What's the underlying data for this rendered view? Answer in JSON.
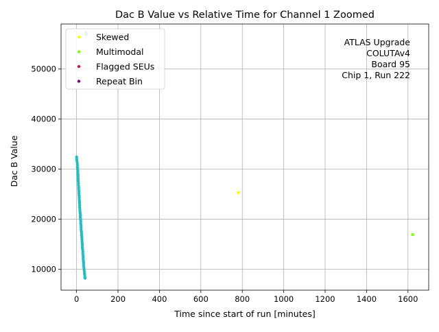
{
  "chart_data": {
    "type": "scatter",
    "title": "Dac B Value vs Relative Time for Channel 1 Zoomed",
    "xlabel": "Time since start of run [minutes]",
    "ylabel": "Dac B Value",
    "xlim": [
      -75,
      1700
    ],
    "ylim": [
      5800,
      59000
    ],
    "xticks": [
      0,
      200,
      400,
      600,
      800,
      1000,
      1200,
      1400,
      1600
    ],
    "xtick_labels": [
      "0",
      "200",
      "400",
      "600",
      "800",
      "1000",
      "1200",
      "1400",
      "1600"
    ],
    "yticks": [
      10000,
      20000,
      30000,
      40000,
      50000
    ],
    "ytick_labels": [
      "10000",
      "20000",
      "30000",
      "40000",
      "50000"
    ],
    "grid": true,
    "legend_location": "upper-left",
    "annotation": [
      "ATLAS Upgrade",
      "COLUTAv4",
      "Board 95",
      "Chip 1, Run 222"
    ],
    "series": [
      {
        "name": "",
        "color": "#1fbfbf",
        "points": [
          [
            0,
            32400
          ],
          [
            1,
            32000
          ],
          [
            2,
            31600
          ],
          [
            3,
            31200
          ],
          [
            4,
            30800
          ],
          [
            4,
            30400
          ],
          [
            5,
            30000
          ],
          [
            6,
            29600
          ],
          [
            6,
            29200
          ],
          [
            7,
            28800
          ],
          [
            7,
            28400
          ],
          [
            8,
            28000
          ],
          [
            8,
            27600
          ],
          [
            9,
            27200
          ],
          [
            9,
            26800
          ],
          [
            10,
            26400
          ],
          [
            10,
            26000
          ],
          [
            11,
            25600
          ],
          [
            11,
            25200
          ],
          [
            12,
            24800
          ],
          [
            13,
            24400
          ],
          [
            13,
            24000
          ],
          [
            14,
            23600
          ],
          [
            14,
            23200
          ],
          [
            15,
            22800
          ],
          [
            15,
            22400
          ],
          [
            16,
            22000
          ],
          [
            16,
            21600
          ],
          [
            17,
            21200
          ],
          [
            18,
            20800
          ],
          [
            18,
            20400
          ],
          [
            19,
            20000
          ],
          [
            20,
            19600
          ],
          [
            20,
            19200
          ],
          [
            21,
            18800
          ],
          [
            22,
            18400
          ],
          [
            22,
            18000
          ],
          [
            23,
            17600
          ],
          [
            24,
            17200
          ],
          [
            24,
            16800
          ],
          [
            25,
            16400
          ],
          [
            26,
            16000
          ],
          [
            26,
            15600
          ],
          [
            27,
            15200
          ],
          [
            28,
            14800
          ],
          [
            28,
            14400
          ],
          [
            29,
            14000
          ],
          [
            30,
            13600
          ],
          [
            30,
            13200
          ],
          [
            31,
            12800
          ],
          [
            32,
            12400
          ],
          [
            32,
            12000
          ],
          [
            33,
            11600
          ],
          [
            34,
            11200
          ],
          [
            34,
            10800
          ],
          [
            35,
            10400
          ],
          [
            36,
            10000
          ],
          [
            37,
            9600
          ],
          [
            38,
            9200
          ],
          [
            39,
            8800
          ],
          [
            40,
            8400
          ],
          [
            41,
            8200
          ],
          [
            45,
            57200
          ],
          [
            46,
            56900
          ],
          [
            47,
            57000
          ]
        ]
      },
      {
        "name": "Skewed",
        "color": "#ffff00",
        "points": [
          [
            780,
            25300
          ]
        ]
      },
      {
        "name": "Multimodal",
        "color": "#7fff00",
        "points": [
          [
            1622,
            16900
          ]
        ]
      },
      {
        "name": "Flagged SEUs",
        "color": "#dc143c",
        "points": []
      },
      {
        "name": "Repeat Bin",
        "color": "#800080",
        "points": []
      }
    ]
  }
}
